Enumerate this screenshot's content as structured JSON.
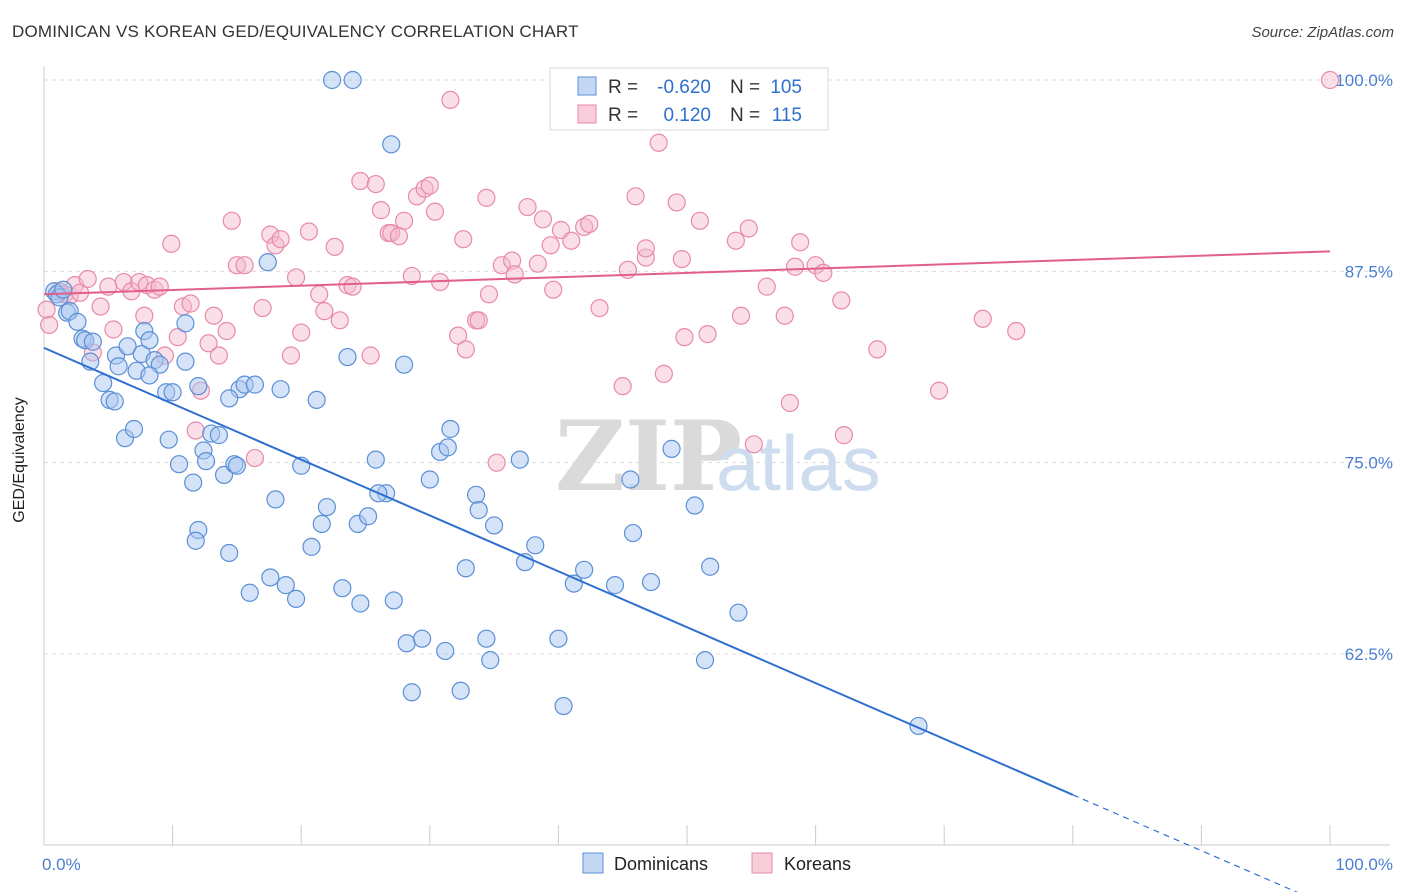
{
  "title": "DOMINICAN VS KOREAN GED/EQUIVALENCY CORRELATION CHART",
  "source": "Source: ZipAtlas.com",
  "watermark": {
    "zip": "ZIP",
    "atlas": "atlas"
  },
  "colors": {
    "dominicans_fill": "#a9c7ef",
    "dominicans_stroke": "#5b8fd6",
    "dominicans_line": "#2f6fd0",
    "koreans_fill": "#f5b9cc",
    "koreans_stroke": "#e88aaa",
    "koreans_line": "#e0608a",
    "tick_text": "#4a7fd0",
    "grid": "#dddddd"
  },
  "legend": {
    "rows": [
      {
        "r_label": "R =",
        "r_value": "-0.620",
        "n_label": "N =",
        "n_value": "105"
      },
      {
        "r_label": "R =",
        "r_value": "0.120",
        "n_label": "N =",
        "n_value": "115"
      }
    ]
  },
  "chart_data": {
    "type": "scatter",
    "title": "DOMINICAN VS KOREAN GED/EQUIVALENCY CORRELATION CHART",
    "xlabel": "",
    "ylabel": "GED/Equivalency",
    "xlim": [
      0,
      100
    ],
    "ylim": [
      50,
      102
    ],
    "x_tick_labels": [
      "0.0%",
      "100.0%"
    ],
    "y_ticks": [
      62.5,
      75.0,
      87.5,
      100.0
    ],
    "y_tick_labels": [
      "62.5%",
      "75.0%",
      "87.5%",
      "100.0%"
    ],
    "grid": true,
    "legend_position": "top-center",
    "series": [
      {
        "name": "Dominicans",
        "r": -0.62,
        "n": 105,
        "trend": {
          "x0": 0,
          "y0": 82.5,
          "x1": 80,
          "y1": 53.3,
          "dashed_to_x": 100,
          "dashed_to_y": 46.0
        },
        "points": [
          [
            0.8,
            86.2
          ],
          [
            1.0,
            86.0
          ],
          [
            1.2,
            85.8
          ],
          [
            1.5,
            86.3
          ],
          [
            1.8,
            84.8
          ],
          [
            2.0,
            84.9
          ],
          [
            2.6,
            84.2
          ],
          [
            3.0,
            83.1
          ],
          [
            3.2,
            83.0
          ],
          [
            3.8,
            82.9
          ],
          [
            3.6,
            81.6
          ],
          [
            4.6,
            80.2
          ],
          [
            5.1,
            79.1
          ],
          [
            5.5,
            79.0
          ],
          [
            5.6,
            82.0
          ],
          [
            5.8,
            81.3
          ],
          [
            6.5,
            82.6
          ],
          [
            7.2,
            81.0
          ],
          [
            7.6,
            82.1
          ],
          [
            7.8,
            83.6
          ],
          [
            8.2,
            83.0
          ],
          [
            8.6,
            81.7
          ],
          [
            9.0,
            81.4
          ],
          [
            9.5,
            79.6
          ],
          [
            10.0,
            79.6
          ],
          [
            11.0,
            81.6
          ],
          [
            11.0,
            84.1
          ],
          [
            6.3,
            76.6
          ],
          [
            7.0,
            77.2
          ],
          [
            9.7,
            76.5
          ],
          [
            10.5,
            74.9
          ],
          [
            11.6,
            73.7
          ],
          [
            12.4,
            75.8
          ],
          [
            12.6,
            75.1
          ],
          [
            13.0,
            76.9
          ],
          [
            13.6,
            76.8
          ],
          [
            14.0,
            74.2
          ],
          [
            14.8,
            74.9
          ],
          [
            15.0,
            74.8
          ],
          [
            15.2,
            79.8
          ],
          [
            15.6,
            80.1
          ],
          [
            16.4,
            80.1
          ],
          [
            14.4,
            79.2
          ],
          [
            12.0,
            70.6
          ],
          [
            11.8,
            69.9
          ],
          [
            14.4,
            69.1
          ],
          [
            16.0,
            66.5
          ],
          [
            17.6,
            67.5
          ],
          [
            18.0,
            72.6
          ],
          [
            18.4,
            79.8
          ],
          [
            18.8,
            67.0
          ],
          [
            19.6,
            66.1
          ],
          [
            20.0,
            74.8
          ],
          [
            20.8,
            69.5
          ],
          [
            21.2,
            79.1
          ],
          [
            21.6,
            71.0
          ],
          [
            22.0,
            72.1
          ],
          [
            22.4,
            100.0
          ],
          [
            23.2,
            66.8
          ],
          [
            23.6,
            81.9
          ],
          [
            24.0,
            100.0
          ],
          [
            24.6,
            65.8
          ],
          [
            24.4,
            71.0
          ],
          [
            25.2,
            71.5
          ],
          [
            25.8,
            75.2
          ],
          [
            26.6,
            73.0
          ],
          [
            26.0,
            73.0
          ],
          [
            27.2,
            66.0
          ],
          [
            28.0,
            81.4
          ],
          [
            28.2,
            63.2
          ],
          [
            28.6,
            60.0
          ],
          [
            29.4,
            63.5
          ],
          [
            30.0,
            73.9
          ],
          [
            30.8,
            75.7
          ],
          [
            31.2,
            62.7
          ],
          [
            31.4,
            76.0
          ],
          [
            31.6,
            77.2
          ],
          [
            32.4,
            60.1
          ],
          [
            32.8,
            68.1
          ],
          [
            33.6,
            72.9
          ],
          [
            33.8,
            71.9
          ],
          [
            34.4,
            63.5
          ],
          [
            34.7,
            62.1
          ],
          [
            35.0,
            70.9
          ],
          [
            37.0,
            75.2
          ],
          [
            37.4,
            68.5
          ],
          [
            38.2,
            69.6
          ],
          [
            40.0,
            63.5
          ],
          [
            40.4,
            59.1
          ],
          [
            41.2,
            67.1
          ],
          [
            42.0,
            68.0
          ],
          [
            44.4,
            67.0
          ],
          [
            45.6,
            73.9
          ],
          [
            45.8,
            70.4
          ],
          [
            47.2,
            67.2
          ],
          [
            48.8,
            75.9
          ],
          [
            50.6,
            72.2
          ],
          [
            51.4,
            62.1
          ],
          [
            51.8,
            68.2
          ],
          [
            54.0,
            65.2
          ],
          [
            68.0,
            57.8
          ],
          [
            27.0,
            95.8
          ],
          [
            17.4,
            88.1
          ],
          [
            12.0,
            80.0
          ],
          [
            8.2,
            80.7
          ]
        ]
      },
      {
        "name": "Koreans",
        "r": 0.12,
        "n": 115,
        "trend": {
          "x0": 0,
          "y0": 86.0,
          "x1": 100,
          "y1": 88.8
        },
        "points": [
          [
            0.4,
            84.0
          ],
          [
            1.2,
            86.2
          ],
          [
            1.6,
            86.0
          ],
          [
            2.0,
            85.9
          ],
          [
            2.4,
            86.6
          ],
          [
            2.8,
            86.1
          ],
          [
            3.4,
            87.0
          ],
          [
            3.8,
            82.2
          ],
          [
            4.4,
            85.2
          ],
          [
            5.0,
            86.5
          ],
          [
            5.4,
            83.7
          ],
          [
            6.2,
            86.8
          ],
          [
            6.8,
            86.2
          ],
          [
            7.4,
            86.8
          ],
          [
            7.8,
            84.6
          ],
          [
            8.0,
            86.6
          ],
          [
            8.6,
            86.3
          ],
          [
            9.0,
            86.5
          ],
          [
            9.4,
            82.0
          ],
          [
            9.9,
            89.3
          ],
          [
            10.4,
            83.2
          ],
          [
            10.8,
            85.2
          ],
          [
            11.4,
            85.4
          ],
          [
            11.8,
            77.1
          ],
          [
            12.2,
            79.7
          ],
          [
            12.8,
            82.8
          ],
          [
            13.2,
            84.6
          ],
          [
            13.6,
            82.0
          ],
          [
            14.2,
            83.6
          ],
          [
            14.6,
            90.8
          ],
          [
            15.0,
            87.9
          ],
          [
            15.6,
            87.9
          ],
          [
            16.4,
            75.3
          ],
          [
            17.0,
            85.1
          ],
          [
            17.6,
            89.9
          ],
          [
            18.0,
            89.2
          ],
          [
            18.4,
            89.6
          ],
          [
            19.2,
            82.0
          ],
          [
            19.6,
            87.1
          ],
          [
            20.0,
            83.5
          ],
          [
            20.6,
            90.1
          ],
          [
            21.4,
            86.0
          ],
          [
            21.8,
            84.9
          ],
          [
            22.6,
            89.1
          ],
          [
            23.0,
            84.3
          ],
          [
            23.6,
            86.6
          ],
          [
            24.0,
            86.5
          ],
          [
            24.6,
            93.4
          ],
          [
            25.4,
            82.0
          ],
          [
            25.8,
            93.2
          ],
          [
            26.2,
            91.5
          ],
          [
            26.8,
            90.0
          ],
          [
            27.0,
            90.0
          ],
          [
            27.6,
            89.8
          ],
          [
            28.0,
            90.8
          ],
          [
            28.6,
            87.2
          ],
          [
            29.0,
            92.4
          ],
          [
            29.6,
            92.9
          ],
          [
            30.0,
            93.1
          ],
          [
            30.4,
            91.4
          ],
          [
            30.8,
            86.8
          ],
          [
            31.6,
            98.7
          ],
          [
            32.2,
            83.3
          ],
          [
            32.6,
            89.6
          ],
          [
            32.8,
            82.4
          ],
          [
            33.6,
            84.3
          ],
          [
            33.8,
            84.3
          ],
          [
            34.4,
            92.3
          ],
          [
            34.6,
            86.0
          ],
          [
            35.2,
            75.0
          ],
          [
            35.6,
            87.9
          ],
          [
            36.4,
            88.2
          ],
          [
            36.6,
            87.3
          ],
          [
            37.6,
            91.7
          ],
          [
            38.4,
            88.0
          ],
          [
            38.8,
            90.9
          ],
          [
            39.4,
            89.2
          ],
          [
            39.6,
            86.3
          ],
          [
            40.2,
            90.2
          ],
          [
            40.4,
            100.0
          ],
          [
            41.0,
            89.5
          ],
          [
            42.0,
            90.4
          ],
          [
            42.4,
            90.6
          ],
          [
            43.2,
            85.1
          ],
          [
            45.0,
            80.0
          ],
          [
            45.4,
            87.6
          ],
          [
            46.0,
            92.4
          ],
          [
            46.8,
            88.4
          ],
          [
            46.8,
            89.0
          ],
          [
            47.8,
            95.9
          ],
          [
            48.2,
            80.8
          ],
          [
            49.2,
            92.0
          ],
          [
            49.6,
            88.3
          ],
          [
            49.8,
            83.2
          ],
          [
            51.0,
            90.8
          ],
          [
            51.6,
            83.4
          ],
          [
            53.8,
            89.5
          ],
          [
            54.2,
            84.6
          ],
          [
            54.8,
            90.3
          ],
          [
            55.2,
            76.2
          ],
          [
            56.2,
            86.5
          ],
          [
            57.6,
            84.6
          ],
          [
            58.0,
            78.9
          ],
          [
            58.4,
            87.8
          ],
          [
            58.8,
            89.4
          ],
          [
            60.0,
            87.9
          ],
          [
            60.6,
            87.4
          ],
          [
            62.0,
            85.6
          ],
          [
            62.2,
            76.8
          ],
          [
            64.8,
            82.4
          ],
          [
            69.6,
            79.7
          ],
          [
            73.0,
            84.4
          ],
          [
            75.6,
            83.6
          ],
          [
            100.0,
            100.0
          ],
          [
            0.2,
            85.0
          ]
        ]
      }
    ]
  }
}
